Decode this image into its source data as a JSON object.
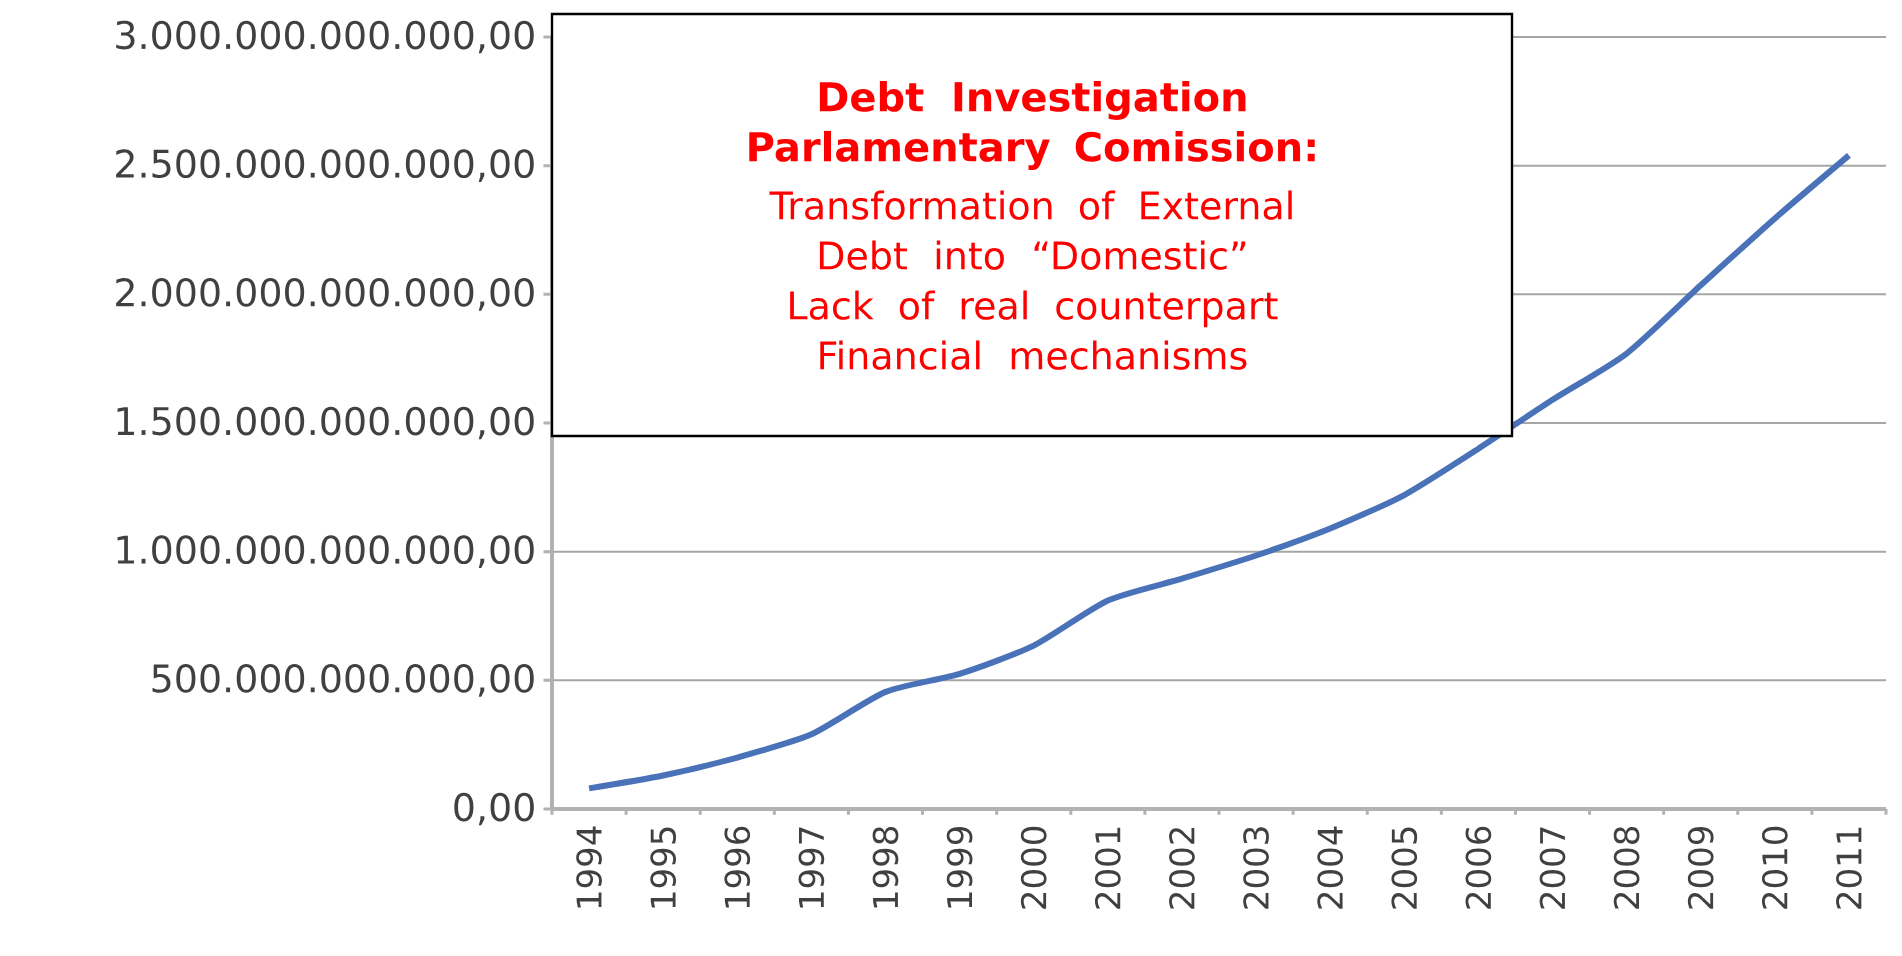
{
  "chart_data": {
    "type": "line",
    "title": "Debt Investigation Parlamentary Comission:",
    "annotations": [
      "Transformation of External Debt into “Domestic”",
      "Lack of real counterpart",
      "Financial mechanisms"
    ],
    "categories": [
      "1994",
      "1995",
      "1996",
      "1997",
      "1998",
      "1999",
      "2000",
      "2001",
      "2002",
      "2003",
      "2004",
      "2005",
      "2006",
      "2007",
      "2008",
      "2009",
      "2010",
      "2011"
    ],
    "series": [
      {
        "color": "#4a72b8",
        "values": [
          80000000000,
          130000000000,
          200000000000,
          290000000000,
          455000000000,
          525000000000,
          635000000000,
          810000000000,
          895000000000,
          985000000000,
          1090000000000,
          1220000000000,
          1400000000000,
          1590000000000,
          1770000000000,
          2035000000000,
          2295000000000,
          2540000000000
        ]
      }
    ],
    "ylim": [
      0,
      3000000000000
    ],
    "yticks": [
      {
        "value": 0,
        "label": "0,00"
      },
      {
        "value": 500000000000,
        "label": "500.000.000.000,00"
      },
      {
        "value": 1000000000000,
        "label": "1.000.000.000.000,00"
      },
      {
        "value": 1500000000000,
        "label": "1.500.000.000.000,00"
      },
      {
        "value": 2000000000000,
        "label": "2.000.000.000.000,00"
      },
      {
        "value": 2500000000000,
        "label": "2.500.000.000.000,00"
      },
      {
        "value": 3000000000000,
        "label": "3.000.000.000.000,00"
      }
    ],
    "grid": "y",
    "marker": "none",
    "line_style": "solid"
  }
}
